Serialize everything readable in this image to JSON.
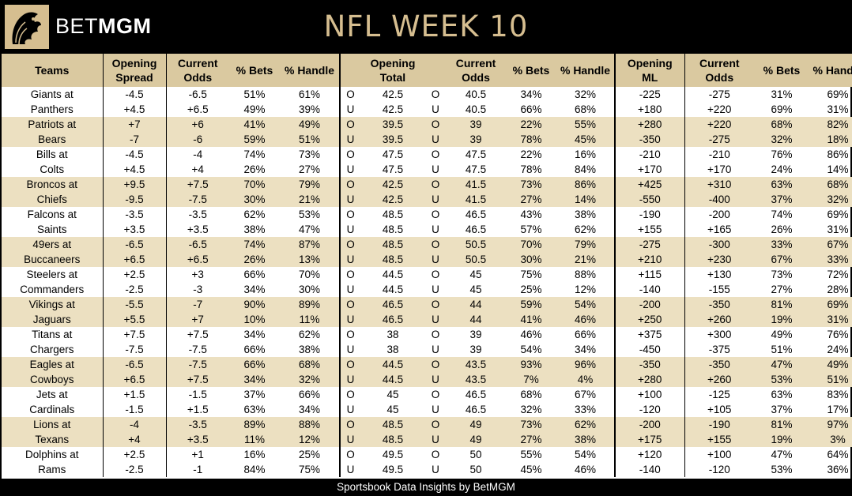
{
  "header": {
    "brand_light": "BET",
    "brand_bold": "MGM",
    "title": "NFL WEEK 10"
  },
  "table": {
    "headers": [
      {
        "l1": "Teams",
        "l2": ""
      },
      {
        "l1": "Opening",
        "l2": "Spread"
      },
      {
        "l1": "Current",
        "l2": "Odds"
      },
      {
        "l1": "% Bets",
        "l2": ""
      },
      {
        "l1": "% Handle",
        "l2": ""
      },
      {
        "l1": "",
        "l2": ""
      },
      {
        "l1": "Opening",
        "l2": "Total"
      },
      {
        "l1": "",
        "l2": ""
      },
      {
        "l1": "Current",
        "l2": "Odds"
      },
      {
        "l1": "% Bets",
        "l2": ""
      },
      {
        "l1": "% Handle",
        "l2": ""
      },
      {
        "l1": "Opening",
        "l2": "ML"
      },
      {
        "l1": "Current",
        "l2": "Odds"
      },
      {
        "l1": "% Bets",
        "l2": ""
      },
      {
        "l1": "% Handle",
        "l2": ""
      }
    ],
    "rows": [
      [
        "Giants at",
        "-4.5",
        "-6.5",
        "51%",
        "61%",
        "O",
        "42.5",
        "O",
        "40.5",
        "34%",
        "32%",
        "-225",
        "-275",
        "31%",
        "69%"
      ],
      [
        "Panthers",
        "+4.5",
        "+6.5",
        "49%",
        "39%",
        "U",
        "42.5",
        "U",
        "40.5",
        "66%",
        "68%",
        "+180",
        "+220",
        "69%",
        "31%"
      ],
      [
        "Patriots at",
        "+7",
        "+6",
        "41%",
        "49%",
        "O",
        "39.5",
        "O",
        "39",
        "22%",
        "55%",
        "+280",
        "+220",
        "68%",
        "82%"
      ],
      [
        "Bears",
        "-7",
        "-6",
        "59%",
        "51%",
        "U",
        "39.5",
        "U",
        "39",
        "78%",
        "45%",
        "-350",
        "-275",
        "32%",
        "18%"
      ],
      [
        "Bills at",
        "-4.5",
        "-4",
        "74%",
        "73%",
        "O",
        "47.5",
        "O",
        "47.5",
        "22%",
        "16%",
        "-210",
        "-210",
        "76%",
        "86%"
      ],
      [
        "Colts",
        "+4.5",
        "+4",
        "26%",
        "27%",
        "U",
        "47.5",
        "U",
        "47.5",
        "78%",
        "84%",
        "+170",
        "+170",
        "24%",
        "14%"
      ],
      [
        "Broncos at",
        "+9.5",
        "+7.5",
        "70%",
        "79%",
        "O",
        "42.5",
        "O",
        "41.5",
        "73%",
        "86%",
        "+425",
        "+310",
        "63%",
        "68%"
      ],
      [
        "Chiefs",
        "-9.5",
        "-7.5",
        "30%",
        "21%",
        "U",
        "42.5",
        "U",
        "41.5",
        "27%",
        "14%",
        "-550",
        "-400",
        "37%",
        "32%"
      ],
      [
        "Falcons at",
        "-3.5",
        "-3.5",
        "62%",
        "53%",
        "O",
        "48.5",
        "O",
        "46.5",
        "43%",
        "38%",
        "-190",
        "-200",
        "74%",
        "69%"
      ],
      [
        "Saints",
        "+3.5",
        "+3.5",
        "38%",
        "47%",
        "U",
        "48.5",
        "U",
        "46.5",
        "57%",
        "62%",
        "+155",
        "+165",
        "26%",
        "31%"
      ],
      [
        "49ers at",
        "-6.5",
        "-6.5",
        "74%",
        "87%",
        "O",
        "48.5",
        "O",
        "50.5",
        "70%",
        "79%",
        "-275",
        "-300",
        "33%",
        "67%"
      ],
      [
        "Buccaneers",
        "+6.5",
        "+6.5",
        "26%",
        "13%",
        "U",
        "48.5",
        "U",
        "50.5",
        "30%",
        "21%",
        "+210",
        "+230",
        "67%",
        "33%"
      ],
      [
        "Steelers at",
        "+2.5",
        "+3",
        "66%",
        "70%",
        "O",
        "44.5",
        "O",
        "45",
        "75%",
        "88%",
        "+115",
        "+130",
        "73%",
        "72%"
      ],
      [
        "Commanders",
        "-2.5",
        "-3",
        "34%",
        "30%",
        "U",
        "44.5",
        "U",
        "45",
        "25%",
        "12%",
        "-140",
        "-155",
        "27%",
        "28%"
      ],
      [
        "Vikings at",
        "-5.5",
        "-7",
        "90%",
        "89%",
        "O",
        "46.5",
        "O",
        "44",
        "59%",
        "54%",
        "-200",
        "-350",
        "81%",
        "69%"
      ],
      [
        "Jaguars",
        "+5.5",
        "+7",
        "10%",
        "11%",
        "U",
        "46.5",
        "U",
        "44",
        "41%",
        "46%",
        "+250",
        "+260",
        "19%",
        "31%"
      ],
      [
        "Titans at",
        "+7.5",
        "+7.5",
        "34%",
        "62%",
        "O",
        "38",
        "O",
        "39",
        "46%",
        "66%",
        "+375",
        "+300",
        "49%",
        "76%"
      ],
      [
        "Chargers",
        "-7.5",
        "-7.5",
        "66%",
        "38%",
        "U",
        "38",
        "U",
        "39",
        "54%",
        "34%",
        "-450",
        "-375",
        "51%",
        "24%"
      ],
      [
        "Eagles at",
        "-6.5",
        "-7.5",
        "66%",
        "68%",
        "O",
        "44.5",
        "O",
        "43.5",
        "93%",
        "96%",
        "-350",
        "-350",
        "47%",
        "49%"
      ],
      [
        "Cowboys",
        "+6.5",
        "+7.5",
        "34%",
        "32%",
        "U",
        "44.5",
        "U",
        "43.5",
        "7%",
        "4%",
        "+280",
        "+260",
        "53%",
        "51%"
      ],
      [
        "Jets at",
        "+1.5",
        "-1.5",
        "37%",
        "66%",
        "O",
        "45",
        "O",
        "46.5",
        "68%",
        "67%",
        "+100",
        "-125",
        "63%",
        "83%"
      ],
      [
        "Cardinals",
        "-1.5",
        "+1.5",
        "63%",
        "34%",
        "U",
        "45",
        "U",
        "46.5",
        "32%",
        "33%",
        "-120",
        "+105",
        "37%",
        "17%"
      ],
      [
        "Lions at",
        "-4",
        "-3.5",
        "89%",
        "88%",
        "O",
        "48.5",
        "O",
        "49",
        "73%",
        "62%",
        "-200",
        "-190",
        "81%",
        "97%"
      ],
      [
        "Texans",
        "+4",
        "+3.5",
        "11%",
        "12%",
        "U",
        "48.5",
        "U",
        "49",
        "27%",
        "38%",
        "+175",
        "+155",
        "19%",
        "3%"
      ],
      [
        "Dolphins at",
        "+2.5",
        "+1",
        "16%",
        "25%",
        "O",
        "49.5",
        "O",
        "50",
        "55%",
        "54%",
        "+120",
        "+100",
        "47%",
        "64%"
      ],
      [
        "Rams",
        "-2.5",
        "-1",
        "84%",
        "75%",
        "U",
        "49.5",
        "U",
        "50",
        "45%",
        "46%",
        "-140",
        "-120",
        "53%",
        "36%"
      ]
    ]
  },
  "footer": {
    "text": "Sportsbook Data Insights by BetMGM"
  }
}
